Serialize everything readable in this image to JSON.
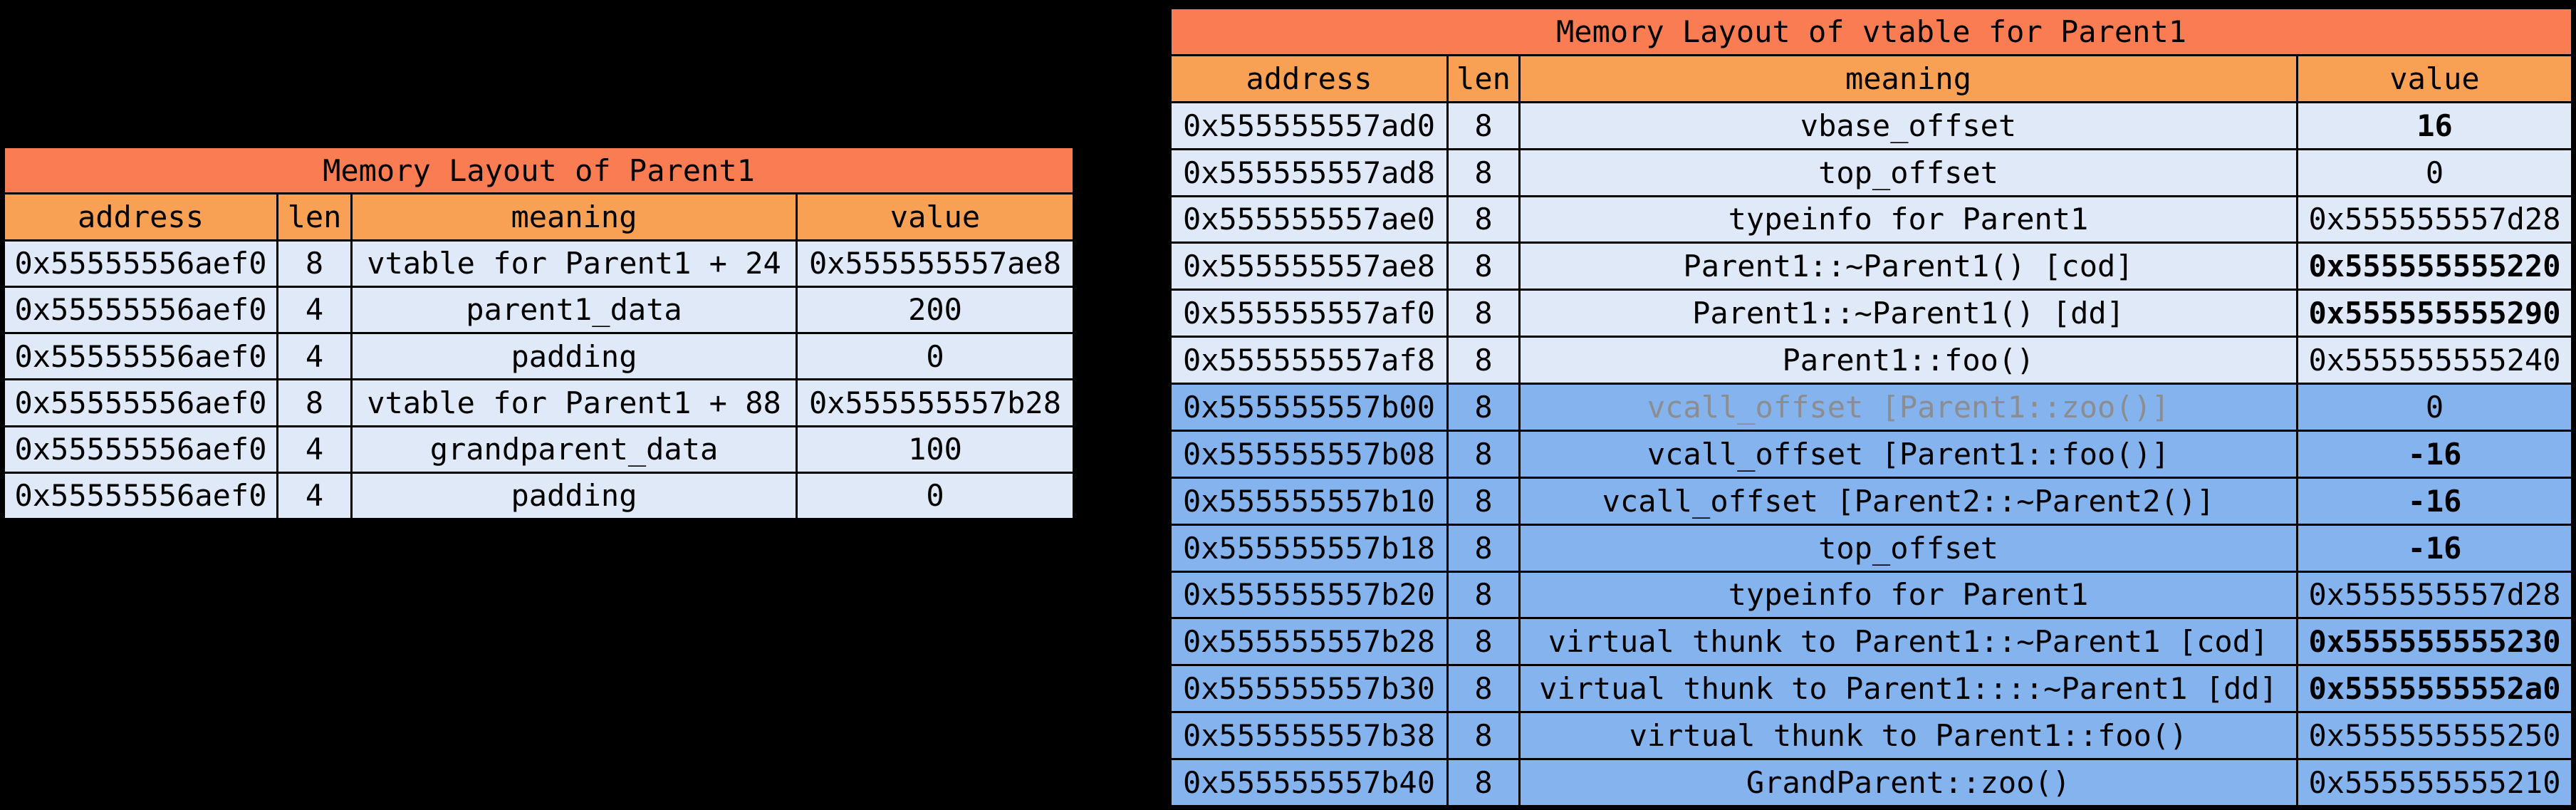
{
  "colors": {
    "background": "#000000",
    "border": "#000000",
    "text": "#000000",
    "title_bg": "#f97c52",
    "header_bg": "#f8a155",
    "row_light_bg": "#dfe9f8",
    "row_dark_bg": "#85b3ee",
    "muted_text": "#8b8d90"
  },
  "chart_data": [
    {
      "type": "table",
      "title": "Memory Layout of Parent1",
      "columns": [
        "address",
        "len",
        "meaning",
        "value"
      ],
      "rows": [
        {
          "address": "0x55555556aef0",
          "len": "8",
          "meaning": "vtable for Parent1 + 24",
          "value": "0x555555557ae8",
          "section": "light",
          "value_bold": false,
          "meaning_muted": false
        },
        {
          "address": "0x55555556aef0",
          "len": "4",
          "meaning": "parent1_data",
          "value": "200",
          "section": "light",
          "value_bold": false,
          "meaning_muted": false
        },
        {
          "address": "0x55555556aef0",
          "len": "4",
          "meaning": "padding",
          "value": "0",
          "section": "light",
          "value_bold": false,
          "meaning_muted": false
        },
        {
          "address": "0x55555556aef0",
          "len": "8",
          "meaning": "vtable for Parent1 + 88",
          "value": "0x555555557b28",
          "section": "light",
          "value_bold": false,
          "meaning_muted": false
        },
        {
          "address": "0x55555556aef0",
          "len": "4",
          "meaning": "grandparent_data",
          "value": "100",
          "section": "light",
          "value_bold": false,
          "meaning_muted": false
        },
        {
          "address": "0x55555556aef0",
          "len": "4",
          "meaning": "padding",
          "value": "0",
          "section": "light",
          "value_bold": false,
          "meaning_muted": false
        }
      ]
    },
    {
      "type": "table",
      "title": "Memory Layout of vtable for Parent1",
      "columns": [
        "address",
        "len",
        "meaning",
        "value"
      ],
      "rows": [
        {
          "address": "0x555555557ad0",
          "len": "8",
          "meaning": "vbase_offset",
          "value": "16",
          "section": "light",
          "value_bold": true,
          "meaning_muted": false
        },
        {
          "address": "0x555555557ad8",
          "len": "8",
          "meaning": "top_offset",
          "value": "0",
          "section": "light",
          "value_bold": false,
          "meaning_muted": false
        },
        {
          "address": "0x555555557ae0",
          "len": "8",
          "meaning": "typeinfo for Parent1",
          "value": "0x555555557d28",
          "section": "light",
          "value_bold": false,
          "meaning_muted": false
        },
        {
          "address": "0x555555557ae8",
          "len": "8",
          "meaning": "Parent1::~Parent1() [cod]",
          "value": "0x555555555220",
          "section": "light",
          "value_bold": true,
          "meaning_muted": false
        },
        {
          "address": "0x555555557af0",
          "len": "8",
          "meaning": "Parent1::~Parent1() [dd]",
          "value": "0x555555555290",
          "section": "light",
          "value_bold": true,
          "meaning_muted": false
        },
        {
          "address": "0x555555557af8",
          "len": "8",
          "meaning": "Parent1::foo()",
          "value": "0x555555555240",
          "section": "light",
          "value_bold": false,
          "meaning_muted": false
        },
        {
          "address": "0x555555557b00",
          "len": "8",
          "meaning": "vcall_offset [Parent1::zoo()]",
          "value": "0",
          "section": "dark",
          "value_bold": false,
          "meaning_muted": true
        },
        {
          "address": "0x555555557b08",
          "len": "8",
          "meaning": "vcall_offset [Parent1::foo()]",
          "value": "-16",
          "section": "dark",
          "value_bold": true,
          "meaning_muted": false
        },
        {
          "address": "0x555555557b10",
          "len": "8",
          "meaning": "vcall_offset [Parent2::~Parent2()]",
          "value": "-16",
          "section": "dark",
          "value_bold": true,
          "meaning_muted": false
        },
        {
          "address": "0x555555557b18",
          "len": "8",
          "meaning": "top_offset",
          "value": "-16",
          "section": "dark",
          "value_bold": true,
          "meaning_muted": false
        },
        {
          "address": "0x555555557b20",
          "len": "8",
          "meaning": "typeinfo for Parent1",
          "value": "0x555555557d28",
          "section": "dark",
          "value_bold": false,
          "meaning_muted": false
        },
        {
          "address": "0x555555557b28",
          "len": "8",
          "meaning": "virtual thunk to Parent1::~Parent1 [cod]",
          "value": "0x555555555230",
          "section": "dark",
          "value_bold": true,
          "meaning_muted": false
        },
        {
          "address": "0x555555557b30",
          "len": "8",
          "meaning": "virtual thunk to Parent1::::~Parent1 [dd]",
          "value": "0x5555555552a0",
          "section": "dark",
          "value_bold": true,
          "meaning_muted": false
        },
        {
          "address": "0x555555557b38",
          "len": "8",
          "meaning": "virtual thunk to Parent1::foo()",
          "value": "0x555555555250",
          "section": "dark",
          "value_bold": false,
          "meaning_muted": false
        },
        {
          "address": "0x555555557b40",
          "len": "8",
          "meaning": "GrandParent::zoo()",
          "value": "0x555555555210",
          "section": "dark",
          "value_bold": false,
          "meaning_muted": false
        }
      ]
    }
  ]
}
